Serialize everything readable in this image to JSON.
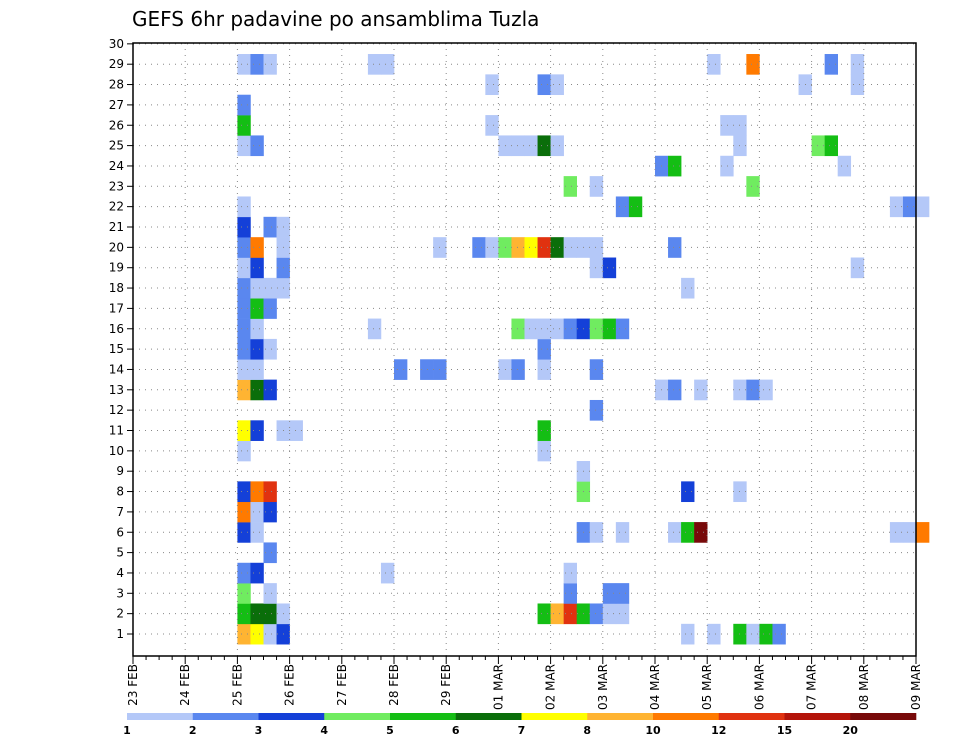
{
  "chart_data": {
    "type": "heatmap",
    "title": "GEFS 6hr padavine po ansamblima Tuzla",
    "xlabel": "",
    "ylabel": "",
    "x_ticks": [
      "23 FEB",
      "24 FEB",
      "25 FEB",
      "26 FEB",
      "27 FEB",
      "28 FEB",
      "29 FEB",
      "01 MAR",
      "02 MAR",
      "03 MAR",
      "04 MAR",
      "05 MAR",
      "06 MAR",
      "07 MAR",
      "08 MAR",
      "09 MAR"
    ],
    "x_range": [
      "23 FEB",
      "09 MAR"
    ],
    "x_step": "6 hr",
    "y_ticks": [
      1,
      2,
      3,
      4,
      5,
      6,
      7,
      8,
      9,
      10,
      11,
      12,
      13,
      14,
      15,
      16,
      17,
      18,
      19,
      20,
      21,
      22,
      23,
      24,
      25,
      26,
      27,
      28,
      29,
      30
    ],
    "y_range": [
      1,
      30
    ],
    "grid": true,
    "legend": "bottom",
    "colorbar": {
      "labels": [
        "1",
        "2",
        "3",
        "4",
        "5",
        "6",
        "7",
        "8",
        "10",
        "12",
        "15",
        "20"
      ],
      "colors": [
        "#b4c8f8",
        "#5a87ef",
        "#1440d8",
        "#70ec60",
        "#14be14",
        "#0a6e0a",
        "#ffff00",
        "#ffb432",
        "#ff7a00",
        "#e03210",
        "#b4140a",
        "#780a0a"
      ]
    },
    "cells": [
      {
        "col": 8,
        "row": 1,
        "cat": 7
      },
      {
        "col": 9,
        "row": 1,
        "cat": 6
      },
      {
        "col": 10,
        "row": 1,
        "cat": 0
      },
      {
        "col": 11,
        "row": 1,
        "cat": 2
      },
      {
        "col": 42,
        "row": 1,
        "cat": 0
      },
      {
        "col": 44,
        "row": 1,
        "cat": 0
      },
      {
        "col": 46,
        "row": 1,
        "cat": 4
      },
      {
        "col": 47,
        "row": 1,
        "cat": 0
      },
      {
        "col": 48,
        "row": 1,
        "cat": 4
      },
      {
        "col": 49,
        "row": 1,
        "cat": 1
      },
      {
        "col": 8,
        "row": 2,
        "cat": 4
      },
      {
        "col": 9,
        "row": 2,
        "cat": 5
      },
      {
        "col": 10,
        "row": 2,
        "cat": 5
      },
      {
        "col": 11,
        "row": 2,
        "cat": 0
      },
      {
        "col": 31,
        "row": 2,
        "cat": 4
      },
      {
        "col": 32,
        "row": 2,
        "cat": 7
      },
      {
        "col": 33,
        "row": 2,
        "cat": 9
      },
      {
        "col": 34,
        "row": 2,
        "cat": 4
      },
      {
        "col": 35,
        "row": 2,
        "cat": 1
      },
      {
        "col": 36,
        "row": 2,
        "cat": 0
      },
      {
        "col": 37,
        "row": 2,
        "cat": 0
      },
      {
        "col": 8,
        "row": 3,
        "cat": 3
      },
      {
        "col": 10,
        "row": 3,
        "cat": 0
      },
      {
        "col": 33,
        "row": 3,
        "cat": 1
      },
      {
        "col": 36,
        "row": 3,
        "cat": 1
      },
      {
        "col": 37,
        "row": 3,
        "cat": 1
      },
      {
        "col": 8,
        "row": 4,
        "cat": 1
      },
      {
        "col": 9,
        "row": 4,
        "cat": 2
      },
      {
        "col": 19,
        "row": 4,
        "cat": 0
      },
      {
        "col": 33,
        "row": 4,
        "cat": 0
      },
      {
        "col": 10,
        "row": 5,
        "cat": 1
      },
      {
        "col": 8,
        "row": 6,
        "cat": 2
      },
      {
        "col": 9,
        "row": 6,
        "cat": 0
      },
      {
        "col": 34,
        "row": 6,
        "cat": 1
      },
      {
        "col": 35,
        "row": 6,
        "cat": 0
      },
      {
        "col": 37,
        "row": 6,
        "cat": 0
      },
      {
        "col": 41,
        "row": 6,
        "cat": 0
      },
      {
        "col": 42,
        "row": 6,
        "cat": 4
      },
      {
        "col": 43,
        "row": 6,
        "cat": 11
      },
      {
        "col": 58,
        "row": 6,
        "cat": 0
      },
      {
        "col": 59,
        "row": 6,
        "cat": 0
      },
      {
        "col": 60,
        "row": 6,
        "cat": 8
      },
      {
        "col": 8,
        "row": 7,
        "cat": 8
      },
      {
        "col": 9,
        "row": 7,
        "cat": 0
      },
      {
        "col": 10,
        "row": 7,
        "cat": 2
      },
      {
        "col": 8,
        "row": 8,
        "cat": 2
      },
      {
        "col": 9,
        "row": 8,
        "cat": 8
      },
      {
        "col": 10,
        "row": 8,
        "cat": 9
      },
      {
        "col": 34,
        "row": 8,
        "cat": 3
      },
      {
        "col": 42,
        "row": 8,
        "cat": 2
      },
      {
        "col": 46,
        "row": 8,
        "cat": 0
      },
      {
        "col": 34,
        "row": 9,
        "cat": 0
      },
      {
        "col": 8,
        "row": 10,
        "cat": 0
      },
      {
        "col": 31,
        "row": 10,
        "cat": 0
      },
      {
        "col": 8,
        "row": 11,
        "cat": 6
      },
      {
        "col": 9,
        "row": 11,
        "cat": 2
      },
      {
        "col": 11,
        "row": 11,
        "cat": 0
      },
      {
        "col": 12,
        "row": 11,
        "cat": 0
      },
      {
        "col": 31,
        "row": 11,
        "cat": 4
      },
      {
        "col": 35,
        "row": 12,
        "cat": 1
      },
      {
        "col": 8,
        "row": 13,
        "cat": 7
      },
      {
        "col": 9,
        "row": 13,
        "cat": 5
      },
      {
        "col": 10,
        "row": 13,
        "cat": 2
      },
      {
        "col": 40,
        "row": 13,
        "cat": 0
      },
      {
        "col": 41,
        "row": 13,
        "cat": 1
      },
      {
        "col": 43,
        "row": 13,
        "cat": 0
      },
      {
        "col": 46,
        "row": 13,
        "cat": 0
      },
      {
        "col": 47,
        "row": 13,
        "cat": 1
      },
      {
        "col": 48,
        "row": 13,
        "cat": 0
      },
      {
        "col": 8,
        "row": 14,
        "cat": 0
      },
      {
        "col": 9,
        "row": 14,
        "cat": 0
      },
      {
        "col": 20,
        "row": 14,
        "cat": 1
      },
      {
        "col": 22,
        "row": 14,
        "cat": 1
      },
      {
        "col": 23,
        "row": 14,
        "cat": 1
      },
      {
        "col": 28,
        "row": 14,
        "cat": 0
      },
      {
        "col": 29,
        "row": 14,
        "cat": 1
      },
      {
        "col": 31,
        "row": 14,
        "cat": 0
      },
      {
        "col": 35,
        "row": 14,
        "cat": 1
      },
      {
        "col": 8,
        "row": 15,
        "cat": 1
      },
      {
        "col": 9,
        "row": 15,
        "cat": 2
      },
      {
        "col": 10,
        "row": 15,
        "cat": 0
      },
      {
        "col": 31,
        "row": 15,
        "cat": 1
      },
      {
        "col": 8,
        "row": 16,
        "cat": 1
      },
      {
        "col": 9,
        "row": 16,
        "cat": 0
      },
      {
        "col": 18,
        "row": 16,
        "cat": 0
      },
      {
        "col": 29,
        "row": 16,
        "cat": 3
      },
      {
        "col": 30,
        "row": 16,
        "cat": 0
      },
      {
        "col": 31,
        "row": 16,
        "cat": 0
      },
      {
        "col": 32,
        "row": 16,
        "cat": 0
      },
      {
        "col": 33,
        "row": 16,
        "cat": 1
      },
      {
        "col": 34,
        "row": 16,
        "cat": 2
      },
      {
        "col": 35,
        "row": 16,
        "cat": 3
      },
      {
        "col": 36,
        "row": 16,
        "cat": 4
      },
      {
        "col": 37,
        "row": 16,
        "cat": 1
      },
      {
        "col": 8,
        "row": 17,
        "cat": 1
      },
      {
        "col": 9,
        "row": 17,
        "cat": 4
      },
      {
        "col": 10,
        "row": 17,
        "cat": 1
      },
      {
        "col": 8,
        "row": 18,
        "cat": 1
      },
      {
        "col": 9,
        "row": 18,
        "cat": 0
      },
      {
        "col": 10,
        "row": 18,
        "cat": 0
      },
      {
        "col": 11,
        "row": 18,
        "cat": 0
      },
      {
        "col": 42,
        "row": 18,
        "cat": 0
      },
      {
        "col": 8,
        "row": 19,
        "cat": 0
      },
      {
        "col": 9,
        "row": 19,
        "cat": 2
      },
      {
        "col": 11,
        "row": 19,
        "cat": 1
      },
      {
        "col": 35,
        "row": 19,
        "cat": 0
      },
      {
        "col": 36,
        "row": 19,
        "cat": 2
      },
      {
        "col": 55,
        "row": 19,
        "cat": 0
      },
      {
        "col": 8,
        "row": 20,
        "cat": 1
      },
      {
        "col": 9,
        "row": 20,
        "cat": 8
      },
      {
        "col": 11,
        "row": 20,
        "cat": 0
      },
      {
        "col": 23,
        "row": 20,
        "cat": 0
      },
      {
        "col": 26,
        "row": 20,
        "cat": 1
      },
      {
        "col": 27,
        "row": 20,
        "cat": 0
      },
      {
        "col": 28,
        "row": 20,
        "cat": 3
      },
      {
        "col": 29,
        "row": 20,
        "cat": 7
      },
      {
        "col": 30,
        "row": 20,
        "cat": 6
      },
      {
        "col": 31,
        "row": 20,
        "cat": 9
      },
      {
        "col": 32,
        "row": 20,
        "cat": 5
      },
      {
        "col": 33,
        "row": 20,
        "cat": 0
      },
      {
        "col": 34,
        "row": 20,
        "cat": 0
      },
      {
        "col": 35,
        "row": 20,
        "cat": 0
      },
      {
        "col": 41,
        "row": 20,
        "cat": 1
      },
      {
        "col": 8,
        "row": 21,
        "cat": 2
      },
      {
        "col": 10,
        "row": 21,
        "cat": 1
      },
      {
        "col": 11,
        "row": 21,
        "cat": 0
      },
      {
        "col": 8,
        "row": 22,
        "cat": 0
      },
      {
        "col": 37,
        "row": 22,
        "cat": 1
      },
      {
        "col": 38,
        "row": 22,
        "cat": 4
      },
      {
        "col": 58,
        "row": 22,
        "cat": 0
      },
      {
        "col": 59,
        "row": 22,
        "cat": 1
      },
      {
        "col": 60,
        "row": 22,
        "cat": 0
      },
      {
        "col": 33,
        "row": 23,
        "cat": 3
      },
      {
        "col": 35,
        "row": 23,
        "cat": 0
      },
      {
        "col": 47,
        "row": 23,
        "cat": 3
      },
      {
        "col": 40,
        "row": 24,
        "cat": 1
      },
      {
        "col": 41,
        "row": 24,
        "cat": 4
      },
      {
        "col": 45,
        "row": 24,
        "cat": 0
      },
      {
        "col": 54,
        "row": 24,
        "cat": 0
      },
      {
        "col": 8,
        "row": 25,
        "cat": 0
      },
      {
        "col": 9,
        "row": 25,
        "cat": 1
      },
      {
        "col": 28,
        "row": 25,
        "cat": 0
      },
      {
        "col": 29,
        "row": 25,
        "cat": 0
      },
      {
        "col": 30,
        "row": 25,
        "cat": 0
      },
      {
        "col": 31,
        "row": 25,
        "cat": 5
      },
      {
        "col": 32,
        "row": 25,
        "cat": 0
      },
      {
        "col": 46,
        "row": 25,
        "cat": 0
      },
      {
        "col": 52,
        "row": 25,
        "cat": 3
      },
      {
        "col": 53,
        "row": 25,
        "cat": 4
      },
      {
        "col": 8,
        "row": 26,
        "cat": 4
      },
      {
        "col": 27,
        "row": 26,
        "cat": 0
      },
      {
        "col": 45,
        "row": 26,
        "cat": 0
      },
      {
        "col": 46,
        "row": 26,
        "cat": 0
      },
      {
        "col": 8,
        "row": 27,
        "cat": 1
      },
      {
        "col": 27,
        "row": 28,
        "cat": 0
      },
      {
        "col": 31,
        "row": 28,
        "cat": 1
      },
      {
        "col": 32,
        "row": 28,
        "cat": 0
      },
      {
        "col": 51,
        "row": 28,
        "cat": 0
      },
      {
        "col": 55,
        "row": 28,
        "cat": 0
      },
      {
        "col": 8,
        "row": 29,
        "cat": 0
      },
      {
        "col": 9,
        "row": 29,
        "cat": 1
      },
      {
        "col": 10,
        "row": 29,
        "cat": 0
      },
      {
        "col": 18,
        "row": 29,
        "cat": 0
      },
      {
        "col": 19,
        "row": 29,
        "cat": 0
      },
      {
        "col": 44,
        "row": 29,
        "cat": 0
      },
      {
        "col": 47,
        "row": 29,
        "cat": 8
      },
      {
        "col": 53,
        "row": 29,
        "cat": 1
      },
      {
        "col": 55,
        "row": 29,
        "cat": 0
      }
    ]
  }
}
